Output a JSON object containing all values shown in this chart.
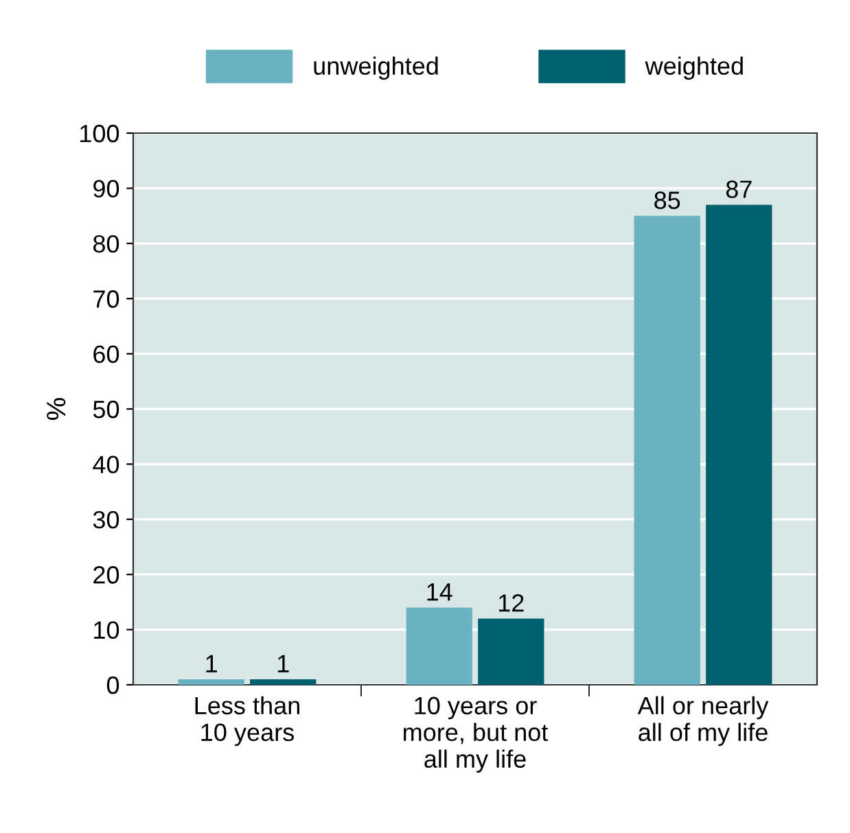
{
  "chart_data": {
    "type": "bar",
    "ylabel": "%",
    "categories": [
      "Less than\n10 years",
      "10 years or\nmore, but not\nall my life",
      "All or nearly\nall of my life"
    ],
    "series": [
      {
        "name": "unweighted",
        "color": "#6ab2c1",
        "values": [
          1,
          14,
          85
        ]
      },
      {
        "name": "weighted",
        "color": "#00606e",
        "values": [
          1,
          12,
          87
        ]
      }
    ],
    "ylim": [
      0,
      100
    ],
    "yticks": [
      0,
      10,
      20,
      30,
      40,
      50,
      60,
      70,
      80,
      90,
      100
    ],
    "grid": "y",
    "legend": "top",
    "data_labels": true
  }
}
